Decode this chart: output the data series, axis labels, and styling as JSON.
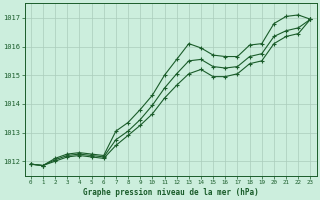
{
  "title": "Graphe pression niveau de la mer (hPa)",
  "bg_color": "#cceedd",
  "grid_color": "#aaccbb",
  "line_color": "#1a5c2a",
  "text_color": "#1a5c2a",
  "ylim": [
    1011.5,
    1017.5
  ],
  "xlim": [
    -0.5,
    23.5
  ],
  "yticks": [
    1012,
    1013,
    1014,
    1015,
    1016,
    1017
  ],
  "xticks": [
    0,
    1,
    2,
    3,
    4,
    5,
    6,
    7,
    8,
    9,
    10,
    11,
    12,
    13,
    14,
    15,
    16,
    17,
    18,
    19,
    20,
    21,
    22,
    23
  ],
  "series1_x": [
    0,
    1,
    2,
    3,
    4,
    5,
    6,
    7,
    8,
    9,
    10,
    11,
    12,
    13,
    14,
    15,
    16,
    17,
    18,
    19,
    20,
    21,
    22,
    23
  ],
  "series1_y": [
    1011.9,
    1011.85,
    1012.1,
    1012.25,
    1012.3,
    1012.25,
    1012.2,
    1013.05,
    1013.35,
    1013.8,
    1014.3,
    1015.0,
    1015.55,
    1016.1,
    1015.95,
    1015.7,
    1015.65,
    1015.65,
    1016.05,
    1016.1,
    1016.8,
    1017.05,
    1017.1,
    1016.95
  ],
  "series2_x": [
    0,
    1,
    2,
    3,
    4,
    5,
    6,
    7,
    8,
    9,
    10,
    11,
    12,
    13,
    14,
    15,
    16,
    17,
    18,
    19,
    20,
    21,
    22,
    23
  ],
  "series2_y": [
    1011.9,
    1011.85,
    1012.05,
    1012.2,
    1012.25,
    1012.2,
    1012.15,
    1012.75,
    1013.05,
    1013.45,
    1013.95,
    1014.55,
    1015.05,
    1015.5,
    1015.55,
    1015.3,
    1015.25,
    1015.3,
    1015.65,
    1015.75,
    1016.35,
    1016.55,
    1016.65,
    1016.95
  ],
  "series3_x": [
    0,
    1,
    2,
    3,
    4,
    5,
    6,
    7,
    8,
    9,
    10,
    11,
    12,
    13,
    14,
    15,
    16,
    17,
    18,
    19,
    20,
    21,
    22,
    23
  ],
  "series3_y": [
    1011.9,
    1011.85,
    1012.0,
    1012.15,
    1012.2,
    1012.15,
    1012.1,
    1012.55,
    1012.9,
    1013.25,
    1013.65,
    1014.2,
    1014.65,
    1015.05,
    1015.2,
    1014.95,
    1014.95,
    1015.05,
    1015.4,
    1015.5,
    1016.1,
    1016.35,
    1016.45,
    1016.95
  ]
}
